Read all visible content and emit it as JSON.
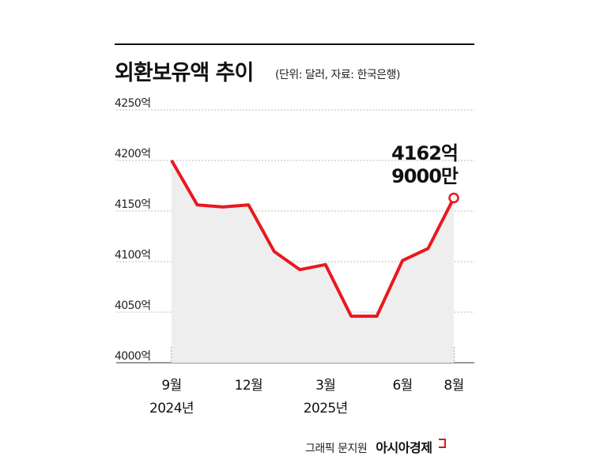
{
  "chart_data": {
    "type": "area",
    "title": "외환보유액 추이",
    "subtitle": "(단위: 달러, 자료: 한국은행)",
    "ylim": [
      4000,
      4250
    ],
    "yticks": [
      {
        "value": 4250,
        "label": "4250억"
      },
      {
        "value": 4200,
        "label": "4200억"
      },
      {
        "value": 4150,
        "label": "4150억"
      },
      {
        "value": 4100,
        "label": "4100억"
      },
      {
        "value": 4050,
        "label": "4050억"
      },
      {
        "value": 4000,
        "label": "4000억"
      }
    ],
    "x": [
      "2024-09",
      "2024-10",
      "2024-11",
      "2024-12",
      "2025-01",
      "2025-02",
      "2025-03",
      "2025-04",
      "2025-05",
      "2025-06",
      "2025-07",
      "2025-08"
    ],
    "series": [
      {
        "values": [
          4200,
          4156,
          4154,
          4156,
          4110,
          4092,
          4097,
          4046,
          4046,
          4101,
          4113,
          4162.9
        ]
      }
    ],
    "xtick_labels": [
      {
        "index": 0,
        "lines": [
          "9월",
          "2024년"
        ]
      },
      {
        "index": 3,
        "lines": [
          "12월"
        ]
      },
      {
        "index": 6,
        "lines": [
          "3월",
          "2025년"
        ]
      },
      {
        "index": 9,
        "lines": [
          "6월"
        ]
      },
      {
        "index": 11,
        "lines": [
          "8월"
        ]
      }
    ],
    "annotation": {
      "index": 11,
      "lines": [
        "4162억",
        "9000만"
      ]
    },
    "grid": true,
    "line_color": "#e8191f",
    "fill_color": "#eeeeee",
    "grid_color": "#bbbbbb"
  },
  "credit": {
    "text": "그래픽 문지원",
    "brand": "아시아경제"
  }
}
